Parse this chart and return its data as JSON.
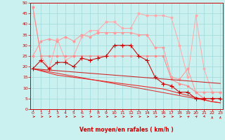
{
  "xlabel": "Vent moyen/en rafales ( km/h )",
  "bg_color": "#caf0f0",
  "grid_color": "#a0d8d8",
  "x": [
    0,
    1,
    2,
    3,
    4,
    5,
    6,
    7,
    8,
    9,
    10,
    11,
    12,
    13,
    14,
    15,
    16,
    17,
    18,
    19,
    20,
    21,
    22,
    23
  ],
  "ylim": [
    0,
    50
  ],
  "xlim": [
    -0.3,
    23.3
  ],
  "yticks": [
    0,
    5,
    10,
    15,
    20,
    25,
    30,
    35,
    40,
    45,
    50
  ],
  "line_pinkhi": [
    48,
    25,
    19,
    33,
    23,
    25,
    34,
    37,
    37,
    41,
    41,
    38,
    38,
    45,
    44,
    44,
    44,
    43,
    30,
    15,
    44,
    19,
    8,
    8
  ],
  "line_pinkmi": [
    25,
    32,
    33,
    32,
    34,
    32,
    35,
    34,
    36,
    36,
    36,
    36,
    36,
    35,
    35,
    29,
    29,
    15,
    14,
    19,
    8,
    8,
    8,
    8
  ],
  "line_pinklo": [
    48,
    25,
    25,
    25,
    25,
    25,
    25,
    25,
    25,
    25,
    25,
    25,
    25,
    25,
    25,
    25,
    25,
    14,
    12,
    11,
    8,
    5,
    5,
    5
  ],
  "line_redmain": [
    19,
    23,
    19,
    22,
    22,
    20,
    24,
    23,
    24,
    25,
    30,
    30,
    30,
    25,
    23,
    15,
    12,
    11,
    8,
    8,
    5,
    5,
    5,
    5
  ],
  "line_redslp1": [
    19,
    18.7,
    18.4,
    18.1,
    17.8,
    17.5,
    17.2,
    16.9,
    16.6,
    16.3,
    16.0,
    15.7,
    15.4,
    15.1,
    14.8,
    14.5,
    14.2,
    13.9,
    13.6,
    13.3,
    13.0,
    12.7,
    12.4,
    12.1
  ],
  "line_redslp2": [
    19,
    18.3,
    17.6,
    16.9,
    16.2,
    15.5,
    14.8,
    14.1,
    13.4,
    12.7,
    12.0,
    11.3,
    10.6,
    9.9,
    9.2,
    8.5,
    7.8,
    7.1,
    6.4,
    5.7,
    5.0,
    4.3,
    3.6,
    3.0
  ],
  "line_redslp3": [
    19,
    18.0,
    17.0,
    16.0,
    15.5,
    15.0,
    14.5,
    14.0,
    13.5,
    13.0,
    12.5,
    12.0,
    11.5,
    11.0,
    10.5,
    10.0,
    9.5,
    8.5,
    7.5,
    6.5,
    5.5,
    4.5,
    3.5,
    3.0
  ],
  "color_pinkhi": "#ffaaaa",
  "color_pinkmi": "#ff9999",
  "color_pinklo": "#ff8888",
  "color_redmain": "#cc0000",
  "color_redslp1": "#cc2222",
  "color_redslp2": "#dd3333",
  "color_redslp3": "#ee2222",
  "marker_color": "#cc0000",
  "arrow_color": "#cc0000"
}
